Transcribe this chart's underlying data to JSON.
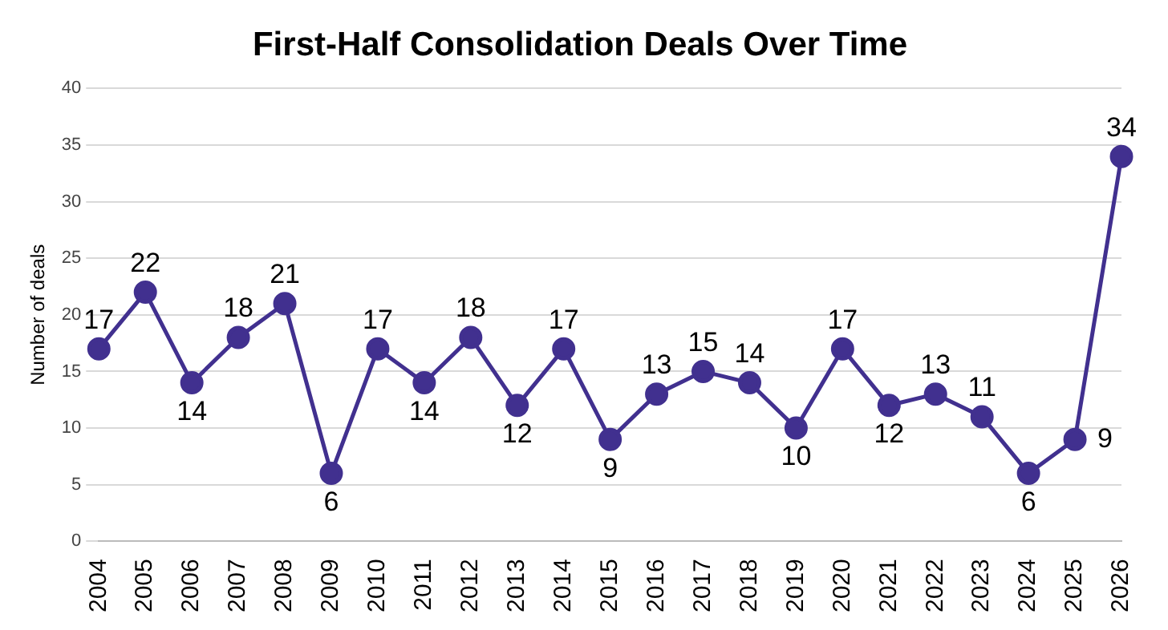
{
  "chart_data": {
    "type": "line",
    "title": "First-Half Consolidation Deals Over Time",
    "ylabel": "Number of deals",
    "categories": [
      "2004",
      "2005",
      "2006",
      "2007",
      "2008",
      "2009",
      "2010",
      "2011",
      "2012",
      "2013",
      "2014",
      "2015",
      "2016",
      "2017",
      "2018",
      "2019",
      "2020",
      "2021",
      "2022",
      "2023",
      "2024",
      "2025",
      "2026"
    ],
    "series": [
      {
        "color": "#41308f",
        "values": [
          17,
          22,
          14,
          18,
          21,
          6,
          17,
          14,
          18,
          12,
          17,
          9,
          13,
          15,
          14,
          10,
          17,
          12,
          13,
          11,
          6,
          9,
          34
        ]
      }
    ],
    "ylim": [
      0,
      40
    ],
    "yticks": [
      0,
      5,
      10,
      15,
      20,
      25,
      30,
      35,
      40
    ],
    "grid": "y",
    "marker": "circle",
    "line_style": "solid",
    "data_labels": true,
    "legend": false
  }
}
